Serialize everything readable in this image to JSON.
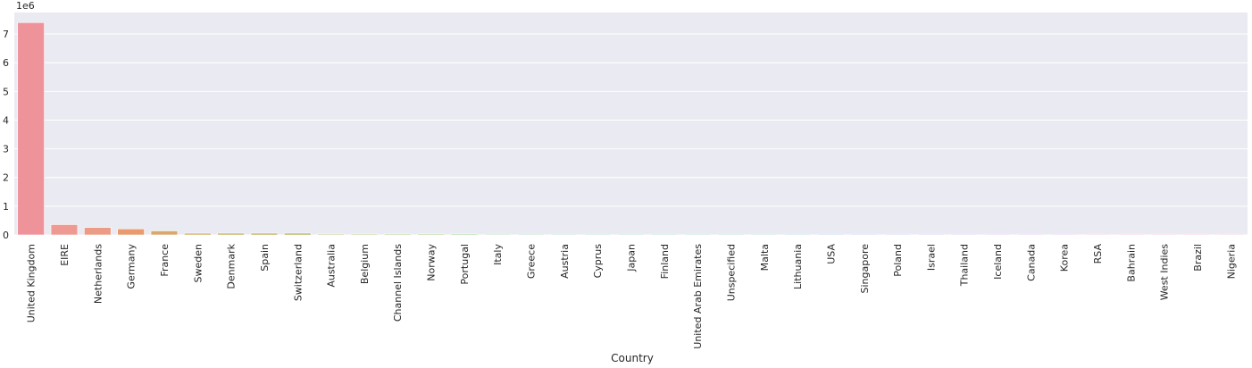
{
  "chart_data": {
    "type": "bar",
    "title": "",
    "xlabel": "Country",
    "ylabel": "",
    "y_offset_label": "1e6",
    "ylim": [
      0,
      7.75
    ],
    "yticks": [
      0,
      1,
      2,
      3,
      4,
      5,
      6,
      7
    ],
    "grid": true,
    "categories": [
      "United Kingdom",
      "EIRE",
      "Netherlands",
      "Germany",
      "France",
      "Sweden",
      "Denmark",
      "Spain",
      "Switzerland",
      "Australia",
      "Belgium",
      "Channel Islands",
      "Norway",
      "Portugal",
      "Italy",
      "Greece",
      "Austria",
      "Cyprus",
      "Japan",
      "Finland",
      "United Arab Emirates",
      "Unspecified",
      "Malta",
      "Lithuania",
      "USA",
      "Singapore",
      "Poland",
      "Israel",
      "Thailand",
      "Iceland",
      "Canada",
      "Korea",
      "RSA",
      "Bahrain",
      "West Indies",
      "Brazil",
      "Nigeria"
    ],
    "values": [
      7.4,
      0.36,
      0.26,
      0.21,
      0.14,
      0.06,
      0.06,
      0.06,
      0.06,
      0.03,
      0.03,
      0.03,
      0.03,
      0.03,
      0.02,
      0.02,
      0.02,
      0.02,
      0.02,
      0.02,
      0.02,
      0.02,
      0.01,
      0.01,
      0.01,
      0.01,
      0.01,
      0.01,
      0.01,
      0.01,
      0.005,
      0.005,
      0.005,
      0.003,
      0.003,
      0.002,
      0.001
    ],
    "colors": [
      "#ef939b",
      "#ee9a92",
      "#ec9c86",
      "#e99a6e",
      "#dca76b",
      "#d2ab66",
      "#c4ad5f",
      "#bbb05e",
      "#b0b25d",
      "#a4b55d",
      "#96b75f",
      "#8bb95f",
      "#7fbb60",
      "#71bd68",
      "#66be72",
      "#5fbd83",
      "#5dbd94",
      "#5bbc9f",
      "#5ab9a9",
      "#5cb8b3",
      "#5db6bb",
      "#5eb5c3",
      "#60b4cb",
      "#62b2d4",
      "#6fa9dd",
      "#7fa4e2",
      "#92a0e7",
      "#a59ae9",
      "#b496ea",
      "#c391ea",
      "#d18de8",
      "#de8ae2",
      "#e68bd6",
      "#eb8ec7",
      "#ee90b9",
      "#ef91ac",
      "#f092a2"
    ]
  }
}
